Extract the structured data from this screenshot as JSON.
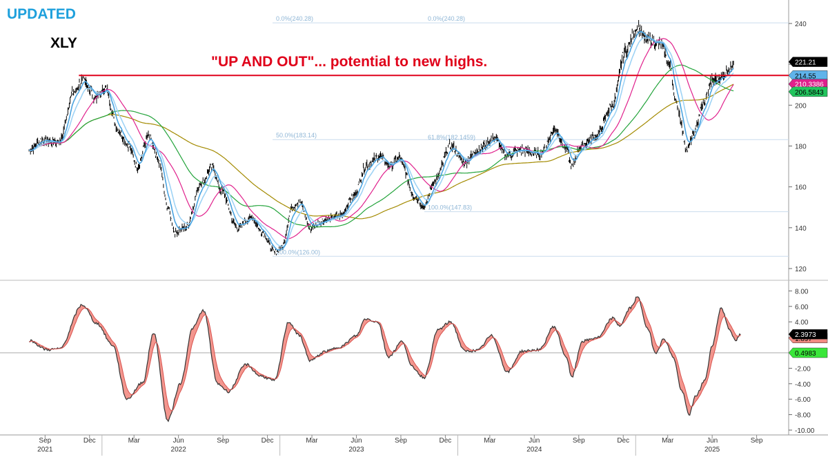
{
  "header": {
    "status": "UPDATED",
    "ticker": "XLY",
    "annotation": "\"UP AND OUT\"... potential to new highs."
  },
  "colors": {
    "price": "#000000",
    "ema_fast": "#4aa3df",
    "ema_mid": "#9ed3f5",
    "ma_pink": "#e0208c",
    "ma_green": "#22a33a",
    "ma_olive": "#a38a00",
    "resistance": "#e0001a",
    "osc_line": "#333333",
    "osc_fill": "#f28b82",
    "fib": "#c9dced"
  },
  "chart_data": [
    {
      "type": "line",
      "title": "XLY",
      "ylim": [
        118,
        248
      ],
      "yticks": [
        120,
        140,
        160,
        180,
        200,
        220,
        240
      ],
      "x_month_labels": [
        "Sep",
        "Dec",
        "Mar",
        "Jun",
        "Sep",
        "Dec",
        "Mar",
        "Jun",
        "Sep",
        "Dec",
        "Mar",
        "Jun",
        "Sep",
        "Dec",
        "Mar",
        "Jun",
        "Sep"
      ],
      "x_year_labels": [
        "2021",
        "2022",
        "2023",
        "2024",
        "2025"
      ],
      "price_anchors": [
        {
          "t": 2021.58,
          "v": 178
        },
        {
          "t": 2021.65,
          "v": 183
        },
        {
          "t": 2021.75,
          "v": 182
        },
        {
          "t": 2021.83,
          "v": 206
        },
        {
          "t": 2021.88,
          "v": 212
        },
        {
          "t": 2021.96,
          "v": 204
        },
        {
          "t": 2022.01,
          "v": 208
        },
        {
          "t": 2022.08,
          "v": 188
        },
        {
          "t": 2022.14,
          "v": 180
        },
        {
          "t": 2022.19,
          "v": 170
        },
        {
          "t": 2022.25,
          "v": 185
        },
        {
          "t": 2022.31,
          "v": 172
        },
        {
          "t": 2022.36,
          "v": 150
        },
        {
          "t": 2022.4,
          "v": 138
        },
        {
          "t": 2022.46,
          "v": 140
        },
        {
          "t": 2022.55,
          "v": 162
        },
        {
          "t": 2022.61,
          "v": 170
        },
        {
          "t": 2022.66,
          "v": 158
        },
        {
          "t": 2022.75,
          "v": 140
        },
        {
          "t": 2022.83,
          "v": 145
        },
        {
          "t": 2022.89,
          "v": 138
        },
        {
          "t": 2022.96,
          "v": 128
        },
        {
          "t": 2023.0,
          "v": 130
        },
        {
          "t": 2023.06,
          "v": 150
        },
        {
          "t": 2023.1,
          "v": 153
        },
        {
          "t": 2023.16,
          "v": 140
        },
        {
          "t": 2023.25,
          "v": 144
        },
        {
          "t": 2023.33,
          "v": 146
        },
        {
          "t": 2023.4,
          "v": 155
        },
        {
          "t": 2023.48,
          "v": 171
        },
        {
          "t": 2023.55,
          "v": 175
        },
        {
          "t": 2023.61,
          "v": 170
        },
        {
          "t": 2023.66,
          "v": 174
        },
        {
          "t": 2023.75,
          "v": 155
        },
        {
          "t": 2023.8,
          "v": 150
        },
        {
          "t": 2023.86,
          "v": 163
        },
        {
          "t": 2023.95,
          "v": 180
        },
        {
          "t": 2024.03,
          "v": 172
        },
        {
          "t": 2024.1,
          "v": 178
        },
        {
          "t": 2024.2,
          "v": 184
        },
        {
          "t": 2024.26,
          "v": 175
        },
        {
          "t": 2024.34,
          "v": 178
        },
        {
          "t": 2024.45,
          "v": 176
        },
        {
          "t": 2024.54,
          "v": 188
        },
        {
          "t": 2024.6,
          "v": 178
        },
        {
          "t": 2024.63,
          "v": 170
        },
        {
          "t": 2024.68,
          "v": 180
        },
        {
          "t": 2024.77,
          "v": 185
        },
        {
          "t": 2024.86,
          "v": 200
        },
        {
          "t": 2024.93,
          "v": 226
        },
        {
          "t": 2025.0,
          "v": 238
        },
        {
          "t": 2025.05,
          "v": 232
        },
        {
          "t": 2025.13,
          "v": 230
        },
        {
          "t": 2025.18,
          "v": 220
        },
        {
          "t": 2025.22,
          "v": 200
        },
        {
          "t": 2025.28,
          "v": 178
        },
        {
          "t": 2025.31,
          "v": 185
        },
        {
          "t": 2025.37,
          "v": 200
        },
        {
          "t": 2025.42,
          "v": 212
        },
        {
          "t": 2025.48,
          "v": 214
        },
        {
          "t": 2025.52,
          "v": 218
        },
        {
          "t": 2025.54,
          "v": 221.21
        }
      ],
      "resistance_level": 214.55,
      "resistance_start_t": 2021.86,
      "last_values": {
        "price": "221.21",
        "resistance": "214.55",
        "ma_pink": "210.3386",
        "ma_green": "206.5843"
      },
      "fibonacci": [
        {
          "label": "0.0%(240.28)",
          "value": 240.28
        },
        {
          "label": "0.0%(240.28)",
          "value": 240.28
        },
        {
          "label": "50.0%(183.14)",
          "value": 183.14
        },
        {
          "label": "61.8%(182.1459)",
          "value": 182.1459
        },
        {
          "label": "100.0%(147.83)",
          "value": 147.83
        },
        {
          "label": "100.0%(126.00)",
          "value": 126.0
        }
      ]
    },
    {
      "type": "line",
      "title": "Oscillator",
      "ylim": [
        -10.4,
        8.4
      ],
      "yticks": [
        "8.00",
        "6.00",
        "4.00",
        "2.00",
        "-2.00",
        "-4.00",
        "-6.00",
        "-8.00",
        "-10.00"
      ],
      "zero_label": "0",
      "last_values": {
        "line": "2.3973",
        "signal": "1.897",
        "zero_marker": "0.4983"
      },
      "anchors": [
        {
          "t": 2021.58,
          "v": 1.6
        },
        {
          "t": 2021.68,
          "v": 0.4
        },
        {
          "t": 2021.75,
          "v": 0.5
        },
        {
          "t": 2021.88,
          "v": 6.2
        },
        {
          "t": 2021.96,
          "v": 3.8
        },
        {
          "t": 2022.05,
          "v": 1.0
        },
        {
          "t": 2022.13,
          "v": -6.0
        },
        {
          "t": 2022.22,
          "v": -3.8
        },
        {
          "t": 2022.28,
          "v": 2.6
        },
        {
          "t": 2022.36,
          "v": -8.8
        },
        {
          "t": 2022.43,
          "v": -4.0
        },
        {
          "t": 2022.5,
          "v": 3.2
        },
        {
          "t": 2022.56,
          "v": 5.5
        },
        {
          "t": 2022.64,
          "v": -4.0
        },
        {
          "t": 2022.7,
          "v": -5.0
        },
        {
          "t": 2022.8,
          "v": -1.5
        },
        {
          "t": 2022.88,
          "v": -3.0
        },
        {
          "t": 2022.96,
          "v": -3.6
        },
        {
          "t": 2023.04,
          "v": 4.0
        },
        {
          "t": 2023.1,
          "v": 2.2
        },
        {
          "t": 2023.16,
          "v": -1.0
        },
        {
          "t": 2023.25,
          "v": 0.2
        },
        {
          "t": 2023.33,
          "v": 0.8
        },
        {
          "t": 2023.42,
          "v": 2.2
        },
        {
          "t": 2023.47,
          "v": 4.4
        },
        {
          "t": 2023.54,
          "v": 4.0
        },
        {
          "t": 2023.6,
          "v": -0.5
        },
        {
          "t": 2023.68,
          "v": 1.5
        },
        {
          "t": 2023.73,
          "v": -1.8
        },
        {
          "t": 2023.8,
          "v": -3.2
        },
        {
          "t": 2023.88,
          "v": 3.0
        },
        {
          "t": 2023.95,
          "v": 4.0
        },
        {
          "t": 2024.03,
          "v": 0.2
        },
        {
          "t": 2024.1,
          "v": 0.3
        },
        {
          "t": 2024.18,
          "v": 2.2
        },
        {
          "t": 2024.27,
          "v": -2.5
        },
        {
          "t": 2024.35,
          "v": 0.2
        },
        {
          "t": 2024.45,
          "v": 0.4
        },
        {
          "t": 2024.53,
          "v": 3.4
        },
        {
          "t": 2024.6,
          "v": -0.5
        },
        {
          "t": 2024.63,
          "v": -3.2
        },
        {
          "t": 2024.69,
          "v": 1.5
        },
        {
          "t": 2024.78,
          "v": 2.0
        },
        {
          "t": 2024.86,
          "v": 4.5
        },
        {
          "t": 2024.9,
          "v": 3.5
        },
        {
          "t": 2024.96,
          "v": 5.8
        },
        {
          "t": 2025.0,
          "v": 7.2
        },
        {
          "t": 2025.06,
          "v": 3.0
        },
        {
          "t": 2025.1,
          "v": 0.0
        },
        {
          "t": 2025.15,
          "v": 1.8
        },
        {
          "t": 2025.2,
          "v": -0.5
        },
        {
          "t": 2025.25,
          "v": -5.0
        },
        {
          "t": 2025.29,
          "v": -8.0
        },
        {
          "t": 2025.33,
          "v": -5.5
        },
        {
          "t": 2025.38,
          "v": -3.5
        },
        {
          "t": 2025.42,
          "v": 1.0
        },
        {
          "t": 2025.47,
          "v": 5.8
        },
        {
          "t": 2025.52,
          "v": 3.0
        },
        {
          "t": 2025.55,
          "v": 1.5
        },
        {
          "t": 2025.58,
          "v": 2.3973
        }
      ]
    }
  ]
}
